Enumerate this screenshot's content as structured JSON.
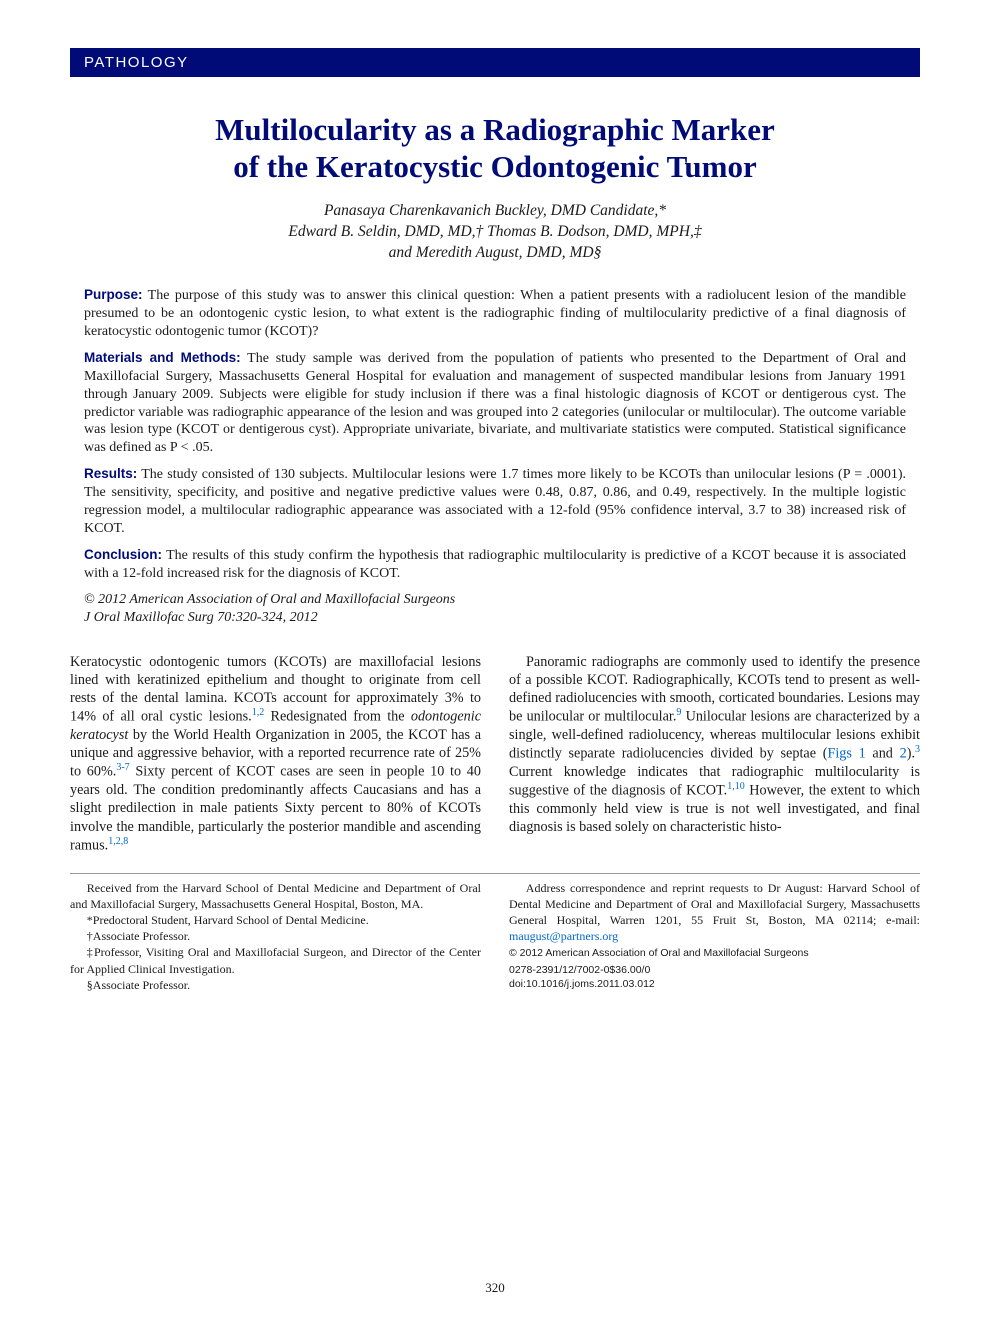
{
  "header": {
    "section": "PATHOLOGY"
  },
  "title_lines": [
    "Multilocularity as a Radiographic Marker",
    "of the Keratocystic Odontogenic Tumor"
  ],
  "authors_lines": [
    "Panasaya Charenkavanich Buckley, DMD Candidate,*",
    "Edward B. Seldin, DMD, MD,† Thomas B. Dodson, DMD, MPH,‡",
    "and Meredith August, DMD, MD§"
  ],
  "abstract": {
    "purpose": {
      "label": "Purpose:",
      "text": "The purpose of this study was to answer this clinical question: When a patient presents with a radiolucent lesion of the mandible presumed to be an odontogenic cystic lesion, to what extent is the radiographic finding of multilocularity predictive of a final diagnosis of keratocystic odontogenic tumor (KCOT)?"
    },
    "methods": {
      "label": "Materials and Methods:",
      "text": "The study sample was derived from the population of patients who presented to the Department of Oral and Maxillofacial Surgery, Massachusetts General Hospital for evaluation and management of suspected mandibular lesions from January 1991 through January 2009. Subjects were eligible for study inclusion if there was a final histologic diagnosis of KCOT or dentigerous cyst. The predictor variable was radiographic appearance of the lesion and was grouped into 2 categories (unilocular or multilocular). The outcome variable was lesion type (KCOT or dentigerous cyst). Appropriate univariate, bivariate, and multivariate statistics were computed. Statistical significance was defined as P < .05."
    },
    "results": {
      "label": "Results:",
      "text": "The study consisted of 130 subjects. Multilocular lesions were 1.7 times more likely to be KCOTs than unilocular lesions (P = .0001). The sensitivity, specificity, and positive and negative predictive values were 0.48, 0.87, 0.86, and 0.49, respectively. In the multiple logistic regression model, a multilocular radiographic appearance was associated with a 12-fold (95% confidence interval, 3.7 to 38) increased risk of KCOT."
    },
    "conclusion": {
      "label": "Conclusion:",
      "text": "The results of this study confirm the hypothesis that radiographic multilocularity is predictive of a KCOT because it is associated with a 12-fold increased risk for the diagnosis of KCOT."
    },
    "copyright": "© 2012 American Association of Oral and Maxillofacial Surgeons",
    "citation": "J Oral Maxillofac Surg 70:320-324, 2012"
  },
  "body": {
    "col1": {
      "p1a": "Keratocystic odontogenic tumors (KCOTs) are maxillofacial lesions lined with keratinized epithelium and thought to originate from cell rests of the dental lamina. KCOTs account for approximately 3% to 14% of all oral cystic lesions.",
      "ref1": "1,2",
      "p1b": " Redesignated from the ",
      "p1c_ital": "odontogenic keratocyst",
      "p1d": " by the World Health Organization in 2005, the KCOT has a unique and aggressive behavior, with a reported recurrence rate of 25% to 60%.",
      "ref2": "3-7",
      "p1e": " Sixty percent of KCOT cases are seen in people 10 to 40 years old. The condition predominantly affects Caucasians and has a slight predilection in male patients Sixty percent to 80% of KCOTs involve the mandible, particularly the posterior mandible and ascending ramus.",
      "ref3": "1,2,8"
    },
    "col2": {
      "p1a": "Panoramic radiographs are commonly used to identify the presence of a possible KCOT. Radiographically, KCOTs tend to present as well-defined radiolucencies with smooth, corticated boundaries. Lesions may be unilocular or multilocular.",
      "ref1": "9",
      "p1b": " Unilocular lesions are characterized by a single, well-defined radiolucency, whereas multilocular lesions exhibit distinctly separate radiolucencies divided by septae (",
      "figref1": "Figs 1",
      "p1c": " and ",
      "figref2": "2",
      "p1d": ").",
      "ref2": "3",
      "p1e": " Current knowledge indicates that radiographic multilocularity is suggestive of the diagnosis of KCOT.",
      "ref3": "1,10",
      "p1f": " However, the extent to which this commonly held view is true is not well investigated, and final diagnosis is based solely on characteristic histo-"
    }
  },
  "footnotes": {
    "col1": {
      "l1": "Received from the Harvard School of Dental Medicine and Department of Oral and Maxillofacial Surgery, Massachusetts General Hospital, Boston, MA.",
      "l2": "*Predoctoral Student, Harvard School of Dental Medicine.",
      "l3": "†Associate Professor.",
      "l4": "‡Professor, Visiting Oral and Maxillofacial Surgeon, and Director of the Center for Applied Clinical Investigation.",
      "l5": "§Associate Professor."
    },
    "col2": {
      "l1a": "Address correspondence and reprint requests to Dr August: Harvard School of Dental Medicine and Department of Oral and Maxillofacial Surgery, Massachusetts General Hospital, Warren 1201, 55 Fruit St, Boston, MA 02114; e-mail: ",
      "email": "maugust@partners.org",
      "pubcopy": "© 2012 American Association of Oral and Maxillofacial Surgeons",
      "issn": "0278-2391/12/7002-0$36.00/0",
      "doi": "doi:10.1016/j.joms.2011.03.012"
    }
  },
  "page_number": "320",
  "colors": {
    "brand_blue": "#000b78",
    "link_blue": "#0066cc",
    "text": "#1a1a1a",
    "background": "#ffffff"
  },
  "typography": {
    "title_fontsize": 31,
    "title_weight": "bold",
    "body_fontsize": 14.2,
    "abstract_fontsize": 14,
    "footnote_fontsize": 12,
    "author_fontsize": 15.5
  }
}
